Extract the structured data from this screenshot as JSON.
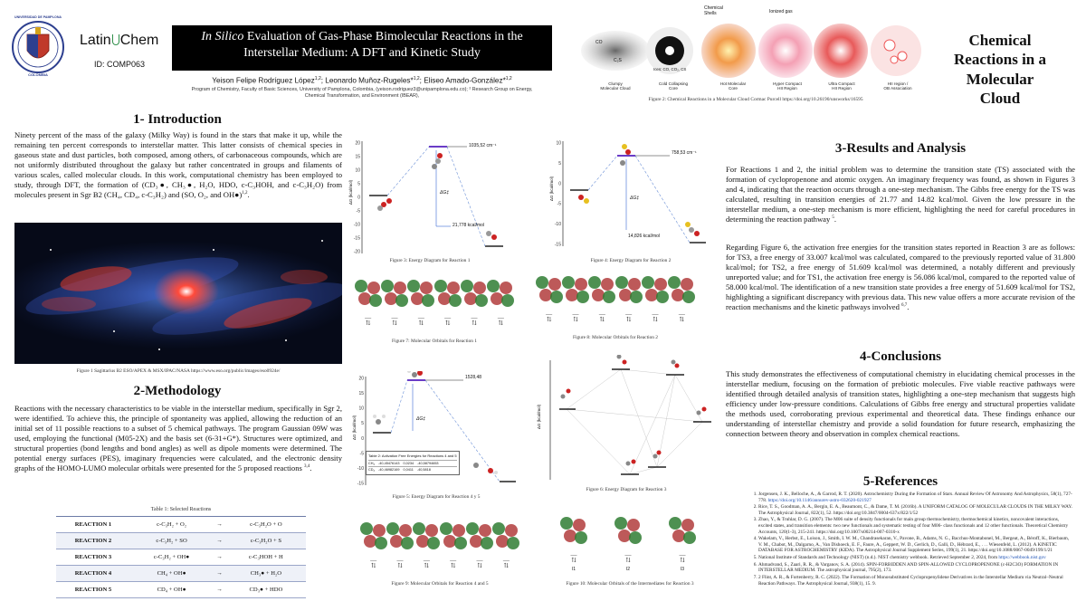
{
  "header": {
    "logo_text_latin": "Latin",
    "logo_text_chem": "Chem",
    "poster_id": "ID: COMP063",
    "title_italic": "In Silico",
    "title_rest": " Evaluation of Gas-Phase Bimolecular Reactions in the Interstellar Medium: A DFT and Kinetic Study",
    "authors": "Yeison Felipe Rodríguez López",
    "authors_2": "; Leonardo Muñoz-Rugeles*",
    "authors_3": "; Eliseo Amado-González*",
    "sup_1": "1,2",
    "affiliation": "Program of Chemistry, Faculty of Basic Sciences, University of Pamplona, Colombia, (yeison.rodriguez3@unipamplona.edu.co); ² Research Group on Energy, Chemical Transformation, and Environment (IBEAR),"
  },
  "seal": {
    "top_text": "UNIVERSIDAD DE PAMPLONA",
    "bottom_text": "COLOMBIA"
  },
  "side_title": {
    "line1": "Chemical",
    "line2": "Reactions in a",
    "line3": "Molecular",
    "line4": "Cloud"
  },
  "figure2": {
    "caption": "Figure 2: Chemical Reactions in a Molecular Cloud Cormac Purcell https://doi.org/10.26190/unsworks/16595",
    "stages": [
      {
        "label": "Clumpy\nMolecular Cloud",
        "color": "#9a9a9a"
      },
      {
        "label": "Cold Collapsing\nCore",
        "color": "#222222"
      },
      {
        "label": "Hot Molecular\nCore",
        "color": "#e0663a"
      },
      {
        "label": "Hyper Compact\nHII Region",
        "color": "#e86a8a"
      },
      {
        "label": "Ultra Compact\nHII Region",
        "color": "#e25555"
      },
      {
        "label": "HII region /\nOB Association",
        "color": "#c94c4c"
      }
    ],
    "labels": {
      "chemical_shells": "Chemical Shells",
      "ionized_gas": "Ionized gas",
      "ices": "Ices: CO, CO₂, CS",
      "co": "CO",
      "c2s": "C₂S"
    }
  },
  "introduction": {
    "title": "1- Introduction",
    "text": "Ninety percent of the mass of the galaxy (Milky Way) is found in the stars that make it up, while the remaining ten percent corresponds to interstellar matter. This latter consists of chemical species in gaseous state and dust particles, both composed, among others, of carbonaceous compounds, which are not uniformly distributed throughout the galaxy but rather concentrated in groups and filaments of various scales, called molecular clouds. In this work, computational chemistry has been employed to study, through DFT, the formation of (CD₃●, CH₃●, H₂O, HDO, c-C₃HOH, and c-C₃H₂O) from molecules present in Sgr B2 (CH₄, CD₄, c-C₃H₂) and (SO, O₂, and OH●)",
    "sup": "1,2",
    "fig1_caption": "Figure 1 Sagittarius B2 ESO/APEX & MSX/IPAC/NASA https://www.eso.org/public/images/eso0924e/"
  },
  "methodology": {
    "title": "2-Methodology",
    "text": "Reactions with the necessary characteristics to be viable in the interstellar medium, specifically in Sgr 2, were identified. To achieve this, the principle of spontaneity was applied, allowing the reduction of an initial set of 11 possible reactions to a subset of 5 chemical pathways. The program Gaussian 09W was used, employing the functional (M05-2X) and the basis set (6-31+G*). Structures were optimized, and structural properties (bond lengths and bond angles) as well as dipole moments were determined. The potential energy surfaces (PES), imaginary frequencies were calculated, and the electronic density graphs of the HOMO-LUMO molecular orbitals were presented for the 5 proposed reactions",
    "sup": "3,4",
    "table_caption": "Table 1: Selected Reactions",
    "reactions": [
      {
        "name": "REACTION  1",
        "lhs": "c-C₃H₂ + O₂",
        "rhs": "c-C₃H₂O + O"
      },
      {
        "name": "REACTION 2",
        "lhs": "c-C₃H₂ + SO",
        "rhs": "c-C₃H₂O + S"
      },
      {
        "name": "REACTION 3",
        "lhs": "c-C₃H₂ + OH●",
        "rhs": "c-C₃HOH + H"
      },
      {
        "name": "REACTION 4",
        "lhs": "CH₄ + OH●",
        "rhs": "CH₃● + H₂O"
      },
      {
        "name": "REACTION 5",
        "lhs": "CD₄ + OH●",
        "rhs": "CD₃● + HDO"
      }
    ]
  },
  "fig3": {
    "caption": "Figure 3: Energy Diagram for Reaction 1",
    "ts_label": "1035,52 cm⁻¹",
    "dg_label": "21,778 kcal/mol",
    "axis": "ΔG (kcal/mol)",
    "dg_sym": "ΔG‡",
    "ticks": [
      "20",
      "15",
      "10",
      "5",
      "0",
      "-5",
      "-10",
      "-15",
      "-20"
    ]
  },
  "fig4": {
    "caption": "Figure 4: Energy Diagram for Reaction 2",
    "ts_label": "758,53 cm⁻¹",
    "dg_label": "14,826 kcal/mol",
    "axis": "ΔG (kcal/mol)",
    "dg_sym": "ΔG‡",
    "ticks": [
      "10",
      "5",
      "0",
      "-5",
      "-10",
      "-15"
    ]
  },
  "fig5": {
    "caption": "Figure 5: Energy Diagram for Reaction 4 y 5",
    "ts_label": "1528,48",
    "axis": "ΔG (kcal/mol)",
    "dg_sym": "ΔG‡",
    "inset_title": "Table 2: Activation Free Energies for Reactions 4 and 5",
    "inset_rows": [
      {
        "mol": "CH₄",
        "a": "-40,45476143",
        "b": "0,0234",
        "c": "-40,58794653"
      },
      {
        "mol": "CD₄",
        "a": "-40,46982169",
        "b": "0,0411",
        "c": "-40,5818"
      }
    ],
    "ticks": [
      "20",
      "15",
      "10",
      "5",
      "0",
      "-5",
      "-10",
      "-15"
    ]
  },
  "fig6": {
    "caption": "Figure 6: Energy Diagram for Reaction 3",
    "axis": "ΔG (kcal/mol)"
  },
  "fig7": {
    "caption": "Figure 7: Molecular Orbitals for Reaction 1"
  },
  "fig8": {
    "caption": "Figure 8: Molecular Orbitals for Reaction 2"
  },
  "fig9": {
    "caption": "Figure 9: Molecular Orbitals for Reaction 4 and 5"
  },
  "fig10": {
    "caption": "Figure 10: Molecular Orbitals of the Intermediates for Reaction 3",
    "labels": [
      "I1",
      "I2",
      "I3"
    ]
  },
  "results": {
    "title": "3-Results and Analysis",
    "p1": "For Reactions 1 and 2, the initial problem was to determine the transition state (TS) associated with the formation of cyclopropenone and atomic oxygen. An imaginary frequency was found, as shown in Figures 3 and 4, indicating that the reaction occurs through a one-step mechanism. The Gibbs free energy for the TS was calculated, resulting in transition energies of 21.77 and 14.82 kcal/mol. Given the low pressure in the interstellar medium, a one-step mechanism is more efficient, highlighting the need for careful procedures in determining the reaction pathway",
    "p1_sup": "5",
    "p2": "Regarding Figure 6, the activation free energies for the transition states reported in Reaction 3 are as follows: for TS3, a free energy of 33.007 kcal/mol was calculated, compared to the previously reported value of 31.800 kcal/mol; for TS2, a free energy of 51.609 kcal/mol was determined, a notably different and previously unreported value; and for TS1, the activation free energy is 56.086 kcal/mol, compared to the reported value of 58.000 kcal/mol. The identification of a new transition state provides a free energy of 51.609 kcal/mol for TS2, highlighting a significant discrepancy with previous data. This new value offers a more accurate revision of the reaction mechanisms and the kinetic pathways involved",
    "p2_sup": "6,7"
  },
  "conclusions": {
    "title": "4-Conclusions",
    "text": "This study demonstrates the effectiveness of computational chemistry in elucidating chemical processes in the interstellar medium, focusing on the formation of prebiotic molecules. Five viable reactive pathways were identified through detailed analysis of transition states, highlighting a one-step mechanism that suggests high efficiency under low-pressure conditions. Calculations of Gibbs free energy and structural properties validate the methods used, corroborating previous experimental and theoretical data. These findings enhance our understanding of interstellar chemistry and provide a solid foundation for future research, emphasizing the connection between theory and observation in complex chemical reactions."
  },
  "references": {
    "title": "5-References",
    "items": [
      {
        "text": "Jorgensen, J. K., Belloche, A., & Garrod, R. T. (2020). Astrochemistry During the Formation of Stars. Annual Review Of Astronomy And Astrophysics, 58(1), 727-778.",
        "link": "https://doi.org/10.1146/annurev-astro-032620-021927"
      },
      {
        "text": "Rice, T. S., Goodman, A. A., Bergin, E. A., Beaumont, C., & Dame, T. M. (2016b). A UNIFORM CATALOG OF MOLECULAR CLOUDS IN THE MILKY WAY. The Astrophysical Journal, 822(1), 52. https://doi.org/10.3847/0004-637x/822/1/52",
        "link": ""
      },
      {
        "text": "Zhao, Y., & Truhlar, D. G. (2007). The M06 suite of density functionals for main group thermochemistry, thermochemical kinetics, noncovalent interactions, excited states, and transition elements: two new functionals and systematic testing of four M06- class functionals and 12 other functionals. Theoretical Chemistry Accounts, 120(1-3), 215-241. https://doi.org/10.1007/s00214-007-0310-x",
        "link": ""
      },
      {
        "text": "Wakelam, V., Herbst, E., Loison, J., Smith, I. W. M., Chandrasekaran, V., Pavone, B., Adams, N. G., Bacchus-Montabonel, M., Bergeat, A., Béroff, K., Bierbaum, V. M., Chabot, M., Dalgarno, A., Van Dishoeck, E. F., Faure, A., Geppert, W. D., Gerlich, D., Galli, D., Hébrard, E., . . . Wiesenfeld, L. (2012). A KINETIC DATABASE FOR ASTROCHEMISTRY (KIDA). The Astrophysical Journal Supplement Series, 199(1), 21. https://doi.org/10.1088/0067-0049/199/1/21",
        "link": ""
      },
      {
        "text": "National Institute of Standards and Technology (NIST) (n.d.). NIST chemistry webbook. Retrieved September 2, 2024, from",
        "link": "https://webbook.nist.gov"
      },
      {
        "text": "Ahmadvand, S., Zaari, R. R., & Varganov, S. A. (2014). SPIN-FORBIDDEN AND SPIN-ALLOWED CYCLOPROPENONE (c-H2C3O) FORMATION IN INTERSTELLAR MEDIUM. The astrophysical journal, 795(2), 173.",
        "link": ""
      },
      {
        "text": "2 Flint, A. R., & Fortenberry, R. C. (2022). The Formation of Monosubstituted Cyclopropenylidene Derivatives in the Interstellar Medium via Neutral–Neutral Reaction Pathways. The Astrophysical Journal, 938(1), 15. 9.",
        "link": ""
      }
    ]
  }
}
